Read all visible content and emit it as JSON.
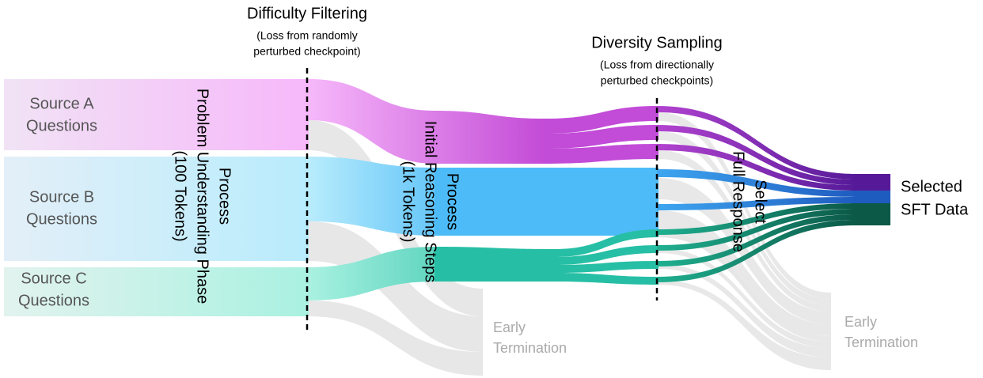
{
  "stages": [
    {
      "title": "Difficulty Filtering",
      "subtitle": [
        "(Loss from randomly",
        "perturbed checkpoint)"
      ]
    },
    {
      "title": "Diversity Sampling",
      "subtitle": [
        "(Loss from directionally",
        "perturbed checkpoints)"
      ]
    }
  ],
  "sources": [
    [
      "Source A",
      "Questions"
    ],
    [
      "Source B",
      "Questions"
    ],
    [
      "Source C",
      "Questions"
    ]
  ],
  "phases": [
    [
      "Process",
      "Problem Understanding Phase",
      "(100 Tokens)"
    ],
    [
      "Process",
      "Initial Reasoning Steps",
      "(1k Tokens)"
    ],
    [
      "Select",
      "Full Response"
    ]
  ],
  "early_termination": [
    [
      "Early",
      "Termination"
    ],
    [
      "Early",
      "Termination"
    ]
  ],
  "output": [
    "Selected",
    "SFT Data"
  ]
}
